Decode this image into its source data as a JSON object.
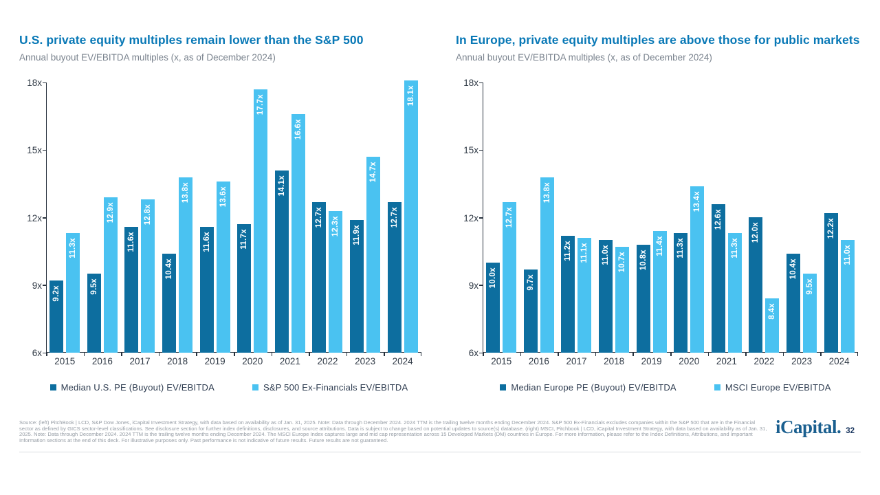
{
  "slide": {
    "logo_text": "iCapital.",
    "page_number": "32",
    "footer_disclosure": "Source: (left) PitchBook | LCD, S&P Dow Jones, iCapital Investment Strategy, with data based on availability as of Jan. 31, 2025. Note: Data through December 2024. 2024 TTM is the trailing twelve months ending December 2024. S&P 500 Ex-Financials excludes companies within the S&P 500 that are in the Financial sector as defined by GICS sector-level classifications. See disclosure section for further index definitions, disclosures, and source attributions. Data is subject to change based on potential updates to source(s) database. (right) MSCI, Pitchbook | LCD, iCapital Investment Strategy, with data based on availability as of Jan. 31, 2025. Note: Data through December 2024. 2024 TTM is the trailing twelve months ending December 2024. The MSCI Europe Index captures large and mid cap representation across 15 Developed Markets (DM) countries in Europe. For more information, please refer to the Index Definitions, Attributions, and Important Information sections at the end of this deck. For illustrative purposes only. Past performance is not indicative of future results. Future results are not guaranteed."
  },
  "colors": {
    "title_blue": "#0878B6",
    "subtitle_gray": "#7A838E",
    "axis_dark": "#26303C",
    "dark_series": "#0D6E9F",
    "light_series": "#4AC2F1",
    "logo_blue": "#1A5F8F",
    "page_navy": "#1C3860"
  },
  "chart_data": [
    {
      "type": "bar",
      "title": "U.S. private equity multiples remain lower than the S&P 500",
      "subtitle": "Annual buyout EV/EBITDA multiples (x, as of December 2024)",
      "categories": [
        "2015",
        "2016",
        "2017",
        "2018",
        "2019",
        "2020",
        "2021",
        "2022",
        "2023",
        "2024"
      ],
      "series": [
        {
          "name": "Median U.S. PE (Buyout) EV/EBITDA",
          "color": "#0D6E9F",
          "values": [
            9.2,
            9.5,
            11.6,
            10.4,
            11.6,
            11.7,
            14.1,
            12.7,
            11.9,
            12.7
          ]
        },
        {
          "name": "S&P 500 Ex-Financials EV/EBITDA",
          "color": "#4AC2F1",
          "values": [
            11.3,
            12.9,
            12.8,
            13.8,
            13.6,
            17.7,
            16.6,
            12.3,
            14.7,
            18.1
          ]
        }
      ],
      "unit_suffix": "x",
      "y_ticks": [
        6,
        9,
        12,
        15,
        18
      ],
      "ylim": [
        6,
        18
      ],
      "grid": false,
      "legend_position": "bottom",
      "bar_labels": "white, rotated 90deg, inside bar top"
    },
    {
      "type": "bar",
      "title": "In Europe, private equity multiples are above those for public markets",
      "subtitle": "Annual buyout EV/EBITDA multiples (x, as of December 2024)",
      "categories": [
        "2015",
        "2016",
        "2017",
        "2018",
        "2019",
        "2020",
        "2021",
        "2022",
        "2023",
        "2024"
      ],
      "series": [
        {
          "name": "Median Europe PE (Buyout) EV/EBITDA",
          "color": "#0D6E9F",
          "values": [
            10.0,
            9.7,
            11.2,
            11.0,
            10.8,
            11.3,
            12.6,
            12.0,
            10.4,
            12.2
          ]
        },
        {
          "name": "MSCI Europe EV/EBITDA",
          "color": "#4AC2F1",
          "values": [
            12.7,
            13.8,
            11.1,
            10.7,
            11.4,
            13.4,
            11.3,
            8.4,
            9.5,
            11.0
          ]
        }
      ],
      "unit_suffix": "x",
      "y_ticks": [
        6,
        9,
        12,
        15,
        18
      ],
      "ylim": [
        6,
        18
      ],
      "grid": false,
      "legend_position": "bottom",
      "bar_labels": "white, rotated 90deg, inside bar top"
    }
  ]
}
